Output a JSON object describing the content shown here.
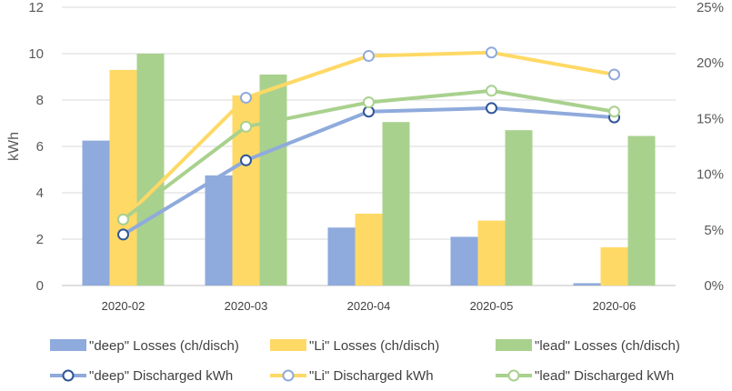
{
  "chart_data": {
    "type": "bar",
    "categories": [
      "2020-02",
      "2020-03",
      "2020-04",
      "2020-05",
      "2020-06"
    ],
    "ylabel": "kWh",
    "ylim": [
      0,
      12
    ],
    "y_ticks": [
      "0",
      "2",
      "4",
      "6",
      "8",
      "10",
      "12"
    ],
    "y2lim": [
      0,
      25
    ],
    "y2_ticks": [
      "0%",
      "5%",
      "10%",
      "15%",
      "20%",
      "25%"
    ],
    "grid": true,
    "legend_position": "bottom",
    "bar_series": [
      {
        "name": "\"deep\" Losses (ch/disch)",
        "color": "#8faadc",
        "values": [
          6.25,
          4.75,
          2.5,
          2.1,
          0.1
        ]
      },
      {
        "name": "\"Li\" Losses (ch/disch)",
        "color": "#ffd966",
        "values": [
          9.3,
          8.2,
          3.1,
          2.8,
          1.65
        ]
      },
      {
        "name": "\"lead\" Losses (ch/disch)",
        "color": "#a9d18e",
        "values": [
          10.0,
          9.1,
          7.05,
          6.7,
          6.45
        ]
      }
    ],
    "line_series": [
      {
        "name": "\"deep\" Discharged kWh",
        "color": "#8faadc",
        "marker_stroke": "#2f5597",
        "values": [
          2.2,
          5.4,
          7.5,
          7.65,
          7.25
        ]
      },
      {
        "name": "\"Li\" Discharged kWh",
        "color": "#ffd966",
        "marker_stroke": "#8faadc",
        "values": [
          2.85,
          8.1,
          9.9,
          10.05,
          9.1
        ]
      },
      {
        "name": "\"lead\" Discharged kWh",
        "color": "#a9d18e",
        "marker_stroke": "#a9d18e",
        "values": [
          2.85,
          6.85,
          7.9,
          8.4,
          7.5
        ]
      }
    ]
  }
}
